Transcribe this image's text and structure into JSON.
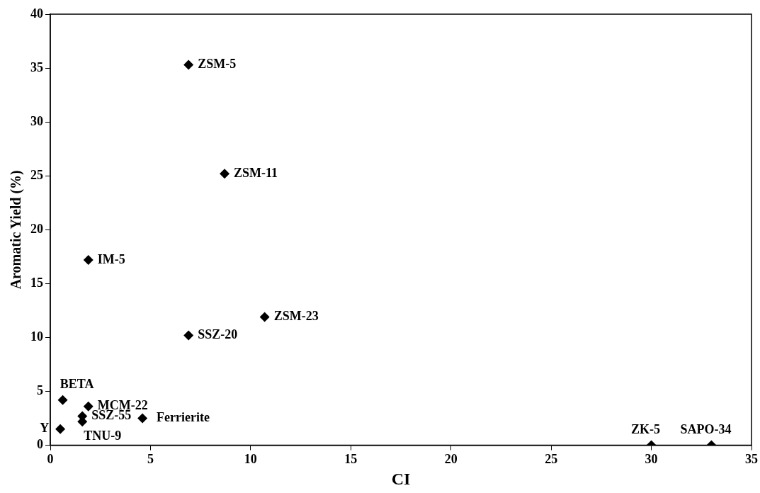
{
  "chart_data": {
    "type": "scatter",
    "xlabel": "CI",
    "ylabel": "Aromatic Yield (%)",
    "x": [
      6.9,
      8.7,
      1.9,
      10.7,
      6.9,
      0.62,
      1.9,
      1.6,
      1.6,
      4.6,
      0.5,
      30,
      33
    ],
    "series": [
      {
        "color": "#000000",
        "values": [
          35.3,
          25.2,
          17.2,
          11.9,
          10.2,
          4.2,
          3.6,
          2.7,
          2.2,
          2.5,
          1.5,
          0,
          0
        ]
      }
    ],
    "xlim": [
      0,
      35
    ],
    "xticks": [
      0,
      5,
      10,
      15,
      20,
      25,
      30,
      35
    ],
    "ylim": [
      0,
      40
    ],
    "yticks": [
      0,
      5,
      10,
      15,
      20,
      25,
      30,
      35,
      40
    ],
    "grid": false,
    "legend": false,
    "marker": "diamond",
    "annotations": [
      {
        "text": "ZSM-5",
        "x": 6.9,
        "y": 35.3
      },
      {
        "text": "ZSM-11",
        "x": 8.7,
        "y": 25.2
      },
      {
        "text": "IM-5",
        "x": 1.9,
        "y": 17.2
      },
      {
        "text": "ZSM-23",
        "x": 10.7,
        "y": 11.9
      },
      {
        "text": "SSZ-20",
        "x": 6.9,
        "y": 10.2
      },
      {
        "text": "BETA",
        "x": 0.62,
        "y": 4.2
      },
      {
        "text": "MCM-22",
        "x": 1.9,
        "y": 3.6
      },
      {
        "text": "SSZ-55",
        "x": 1.6,
        "y": 2.7
      },
      {
        "text": "TNU-9",
        "x": 1.6,
        "y": 2.2
      },
      {
        "text": "Ferrierite",
        "x": 4.6,
        "y": 2.5
      },
      {
        "text": "Y",
        "x": 0.5,
        "y": 1.5
      },
      {
        "text": "ZK-5",
        "x": 30,
        "y": 0
      },
      {
        "text": "SAPO-34",
        "x": 33,
        "y": 0
      }
    ]
  }
}
